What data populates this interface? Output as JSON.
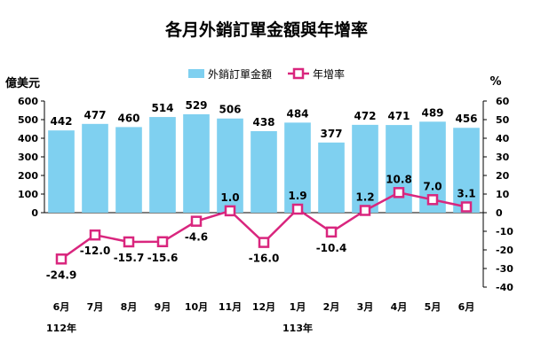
{
  "chart_data": {
    "type": "bar+line",
    "title": "各月外銷訂單金額與年增率",
    "y_left_unit": "億美元",
    "y_right_unit": "%",
    "categories": [
      "6月",
      "7月",
      "8月",
      "9月",
      "10月",
      "11月",
      "12月",
      "1月",
      "2月",
      "3月",
      "4月",
      "5月",
      "6月"
    ],
    "year_labels": [
      {
        "text": "112年",
        "category_index": 0
      },
      {
        "text": "113年",
        "category_index": 7
      }
    ],
    "series": [
      {
        "name": "外銷訂單金額",
        "type": "bar",
        "axis": "left",
        "color": "#7fd0f0",
        "values": [
          442,
          477,
          460,
          514,
          529,
          506,
          438,
          484,
          377,
          472,
          471,
          489,
          456
        ],
        "labels": [
          "442",
          "477",
          "460",
          "514",
          "529",
          "506",
          "438",
          "484",
          "377",
          "472",
          "471",
          "489",
          "456"
        ]
      },
      {
        "name": "年增率",
        "type": "line",
        "axis": "right",
        "color": "#d9267e",
        "marker": "square-hollow",
        "values": [
          -24.9,
          -12.0,
          -15.7,
          -15.6,
          -4.6,
          1.0,
          -16.0,
          1.9,
          -10.4,
          1.2,
          10.8,
          7.0,
          3.1
        ],
        "labels": [
          "-24.9",
          "-12.0",
          "-15.7",
          "-15.6",
          "-4.6",
          "1.0",
          "-16.0",
          "1.9",
          "-10.4",
          "1.2",
          "10.8",
          "7.0",
          "3.1"
        ]
      }
    ],
    "y_left": {
      "ylim": [
        -400,
        600
      ],
      "tick_values": [
        0,
        100,
        200,
        300,
        400,
        500,
        600
      ],
      "tick_labels": [
        "0",
        "100",
        "200",
        "300",
        "400",
        "500",
        "600"
      ]
    },
    "y_right": {
      "ylim": [
        -40,
        60
      ],
      "tick_values": [
        60,
        50,
        40,
        30,
        20,
        10,
        0,
        -10,
        -20,
        -30,
        -40
      ],
      "tick_labels": [
        "60",
        "50",
        "40",
        "30",
        "20",
        "10",
        "0",
        "-10",
        "-20",
        "-30",
        "-40"
      ]
    },
    "grid": false,
    "legend_position": "top-center"
  }
}
